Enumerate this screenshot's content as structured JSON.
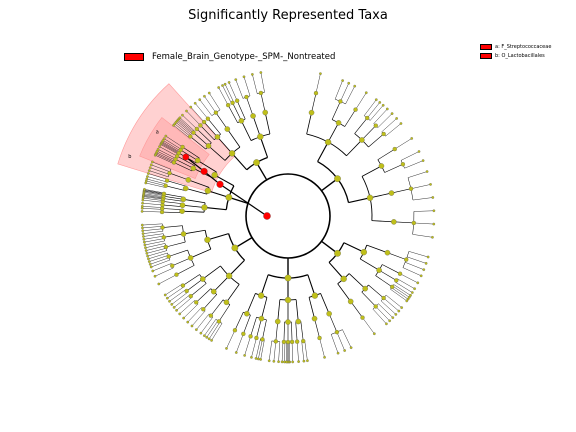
{
  "title": "Significantly Represented Taxa",
  "legend": {
    "group": {
      "label": "Female_Brain_Genotype-_SPM-_Nontreated",
      "color": "#ff0000"
    },
    "taxa": [
      {
        "label": "a: F_Streptococcaceae",
        "color": "#ff0000"
      },
      {
        "label": "b: O_Lactobacillales",
        "color": "#ff0000"
      }
    ]
  },
  "clade_labels": [
    "a",
    "b"
  ],
  "colors": {
    "node_default": "#bfbf1a",
    "node_highlight": "#ff0000",
    "branch": "#000000",
    "highlight_wedge": "#ff9a9a"
  }
}
